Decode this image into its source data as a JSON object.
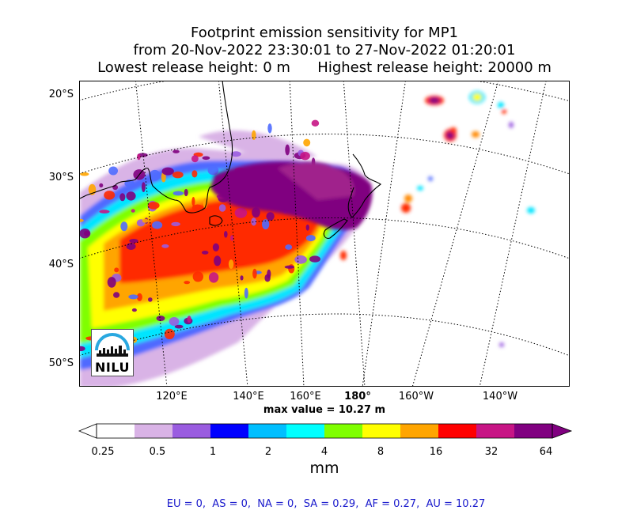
{
  "title": {
    "line1": "Footprint emission sensitivity for MP1",
    "line2": "from 20-Nov-2022 23:30:01 to 27-Nov-2022 01:20:01",
    "line3": "Lowest release height: 0 m      Highest release height: 20000 m"
  },
  "lat_labels": [
    "20°S",
    "30°S",
    "40°S",
    "50°S"
  ],
  "lon_labels": [
    "120°E",
    "140°E",
    "160°E",
    "180°",
    "160°W",
    "140°W"
  ],
  "max_value": "max value = 10.27 m",
  "colorbar": {
    "ticks": [
      "0.25",
      "0.5",
      "1",
      "2",
      "4",
      "8",
      "16",
      "32",
      "64"
    ],
    "unit": "mm",
    "colors": [
      "#ffffff",
      "#d9b3e6",
      "#9a5ce0",
      "#0000ff",
      "#00bfff",
      "#00ffff",
      "#7fff00",
      "#ffff00",
      "#ffa500",
      "#ff0000",
      "#c71585",
      "#800080"
    ]
  },
  "region_values": "EU = 0,  AS = 0,  NA = 0,  SA = 0.29,  AF = 0.27,  AU = 10.27",
  "logo": {
    "text": "NILU",
    "name": "nilu-logo"
  }
}
